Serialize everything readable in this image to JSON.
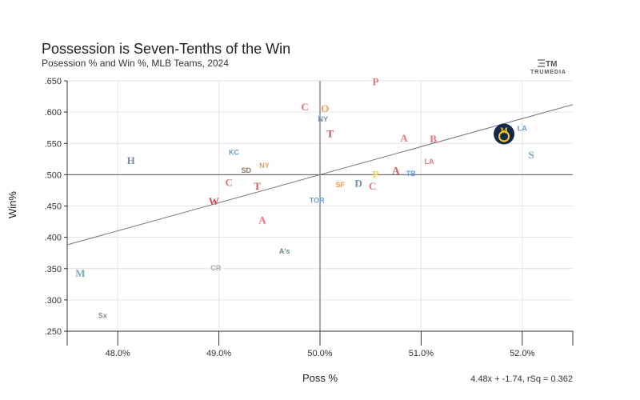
{
  "chart_data": {
    "type": "scatter",
    "title": "Possession is Seven-Tenths of the Win",
    "subtitle": "Posession % and Win %, MLB Teams, 2024",
    "xlabel": "Poss %",
    "ylabel": "Win%",
    "xlim": [
      47.5,
      52.5
    ],
    "ylim": [
      0.25,
      0.65
    ],
    "x_ticks": [
      48.0,
      49.0,
      50.0,
      51.0,
      52.0
    ],
    "x_tick_labels": [
      "48.0%",
      "49.0%",
      "50.0%",
      "51.0%",
      "52.0%"
    ],
    "y_ticks": [
      0.25,
      0.3,
      0.35,
      0.4,
      0.45,
      0.5,
      0.55,
      0.6,
      0.65
    ],
    "y_tick_labels": [
      ".250",
      ".300",
      ".350",
      ".400",
      ".450",
      ".500",
      ".550",
      ".600",
      ".650"
    ],
    "reference_lines": {
      "x": 50.0,
      "y": 0.5
    },
    "grid": true,
    "trendline": {
      "slope": 4.48,
      "intercept": -1.74,
      "label": "4.48x + -1.74, rSq = 0.362"
    },
    "points": [
      {
        "team": "Phillies",
        "x": 50.55,
        "y": 0.648,
        "glyph": "P",
        "color": "#e8727a",
        "highlight": false
      },
      {
        "team": "Guardians",
        "x": 49.85,
        "y": 0.608,
        "glyph": "C",
        "color": "#e8727a",
        "highlight": false
      },
      {
        "team": "Orioles",
        "x": 50.05,
        "y": 0.605,
        "glyph": "O",
        "color": "#f09a5c",
        "highlight": false
      },
      {
        "team": "Yankees",
        "x": 50.03,
        "y": 0.59,
        "glyph": "NY",
        "color": "#7a8aa8",
        "highlight": false
      },
      {
        "team": "Twins",
        "x": 50.1,
        "y": 0.565,
        "glyph": "T",
        "color": "#c94a5a",
        "highlight": false
      },
      {
        "team": "Braves",
        "x": 50.83,
        "y": 0.558,
        "glyph": "A",
        "color": "#e8727a",
        "highlight": false
      },
      {
        "team": "Red Sox",
        "x": 51.12,
        "y": 0.557,
        "glyph": "B",
        "color": "#e8727a",
        "highlight": false
      },
      {
        "team": "Brewers",
        "x": 51.82,
        "y": 0.565,
        "glyph": "M",
        "color": "#f2c12e",
        "highlight": true
      },
      {
        "team": "Dodgers",
        "x": 52.0,
        "y": 0.575,
        "glyph": "LA",
        "color": "#6a9ad8",
        "highlight": false
      },
      {
        "team": "Mariners",
        "x": 52.09,
        "y": 0.531,
        "glyph": "S",
        "color": "#7aa8b8",
        "highlight": false
      },
      {
        "team": "Astros",
        "x": 48.13,
        "y": 0.522,
        "glyph": "H",
        "color": "#7a8aa8",
        "highlight": false
      },
      {
        "team": "Royals",
        "x": 49.15,
        "y": 0.537,
        "glyph": "KC",
        "color": "#6a9ad8",
        "highlight": false
      },
      {
        "team": "Padres",
        "x": 49.27,
        "y": 0.508,
        "glyph": "SD",
        "color": "#8a7a6a",
        "highlight": false
      },
      {
        "team": "Mets",
        "x": 49.45,
        "y": 0.516,
        "glyph": "NY",
        "color": "#f09a5c",
        "highlight": false
      },
      {
        "team": "Diamondbacks",
        "x": 50.75,
        "y": 0.506,
        "glyph": "A",
        "color": "#d9535f",
        "highlight": false
      },
      {
        "team": "Angels",
        "x": 51.08,
        "y": 0.522,
        "glyph": "LA",
        "color": "#e8727a",
        "highlight": false
      },
      {
        "team": "Rays",
        "x": 50.9,
        "y": 0.503,
        "glyph": "TB",
        "color": "#6a9ad8",
        "highlight": false
      },
      {
        "team": "Pirates",
        "x": 50.55,
        "y": 0.5,
        "glyph": "P",
        "color": "#f2d04e",
        "highlight": false
      },
      {
        "team": "Reds",
        "x": 49.1,
        "y": 0.487,
        "glyph": "C",
        "color": "#e8727a",
        "highlight": false
      },
      {
        "team": "Rangers",
        "x": 49.38,
        "y": 0.481,
        "glyph": "T",
        "color": "#d9535f",
        "highlight": false
      },
      {
        "team": "Giants",
        "x": 50.2,
        "y": 0.485,
        "glyph": "SF",
        "color": "#f09a5c",
        "highlight": false
      },
      {
        "team": "Tigers",
        "x": 50.38,
        "y": 0.486,
        "glyph": "D",
        "color": "#7a8aa8",
        "highlight": false
      },
      {
        "team": "Cubs",
        "x": 50.52,
        "y": 0.481,
        "glyph": "C",
        "color": "#e8727a",
        "highlight": false
      },
      {
        "team": "Nationals",
        "x": 48.95,
        "y": 0.457,
        "glyph": "W",
        "color": "#c94a5a",
        "highlight": false
      },
      {
        "team": "Blue Jays",
        "x": 49.97,
        "y": 0.46,
        "glyph": "TOR",
        "color": "#6a9ad8",
        "highlight": false
      },
      {
        "team": "Cardinals",
        "x": 49.43,
        "y": 0.427,
        "glyph": "A",
        "color": "#e8727a",
        "highlight": false
      },
      {
        "team": "Athletics",
        "x": 49.65,
        "y": 0.379,
        "glyph": "A's",
        "color": "#6a8a7a",
        "highlight": false
      },
      {
        "team": "Rockies",
        "x": 48.97,
        "y": 0.352,
        "glyph": "CR",
        "color": "#a8a8b8",
        "highlight": false
      },
      {
        "team": "Marlins",
        "x": 47.63,
        "y": 0.342,
        "glyph": "M",
        "color": "#7aa8b8",
        "highlight": false
      },
      {
        "team": "White Sox",
        "x": 47.85,
        "y": 0.276,
        "glyph": "Sx",
        "color": "#8a8a8a",
        "highlight": false
      }
    ]
  },
  "branding": {
    "logo_glyph": "TM",
    "name": "TRUMEDIA"
  }
}
